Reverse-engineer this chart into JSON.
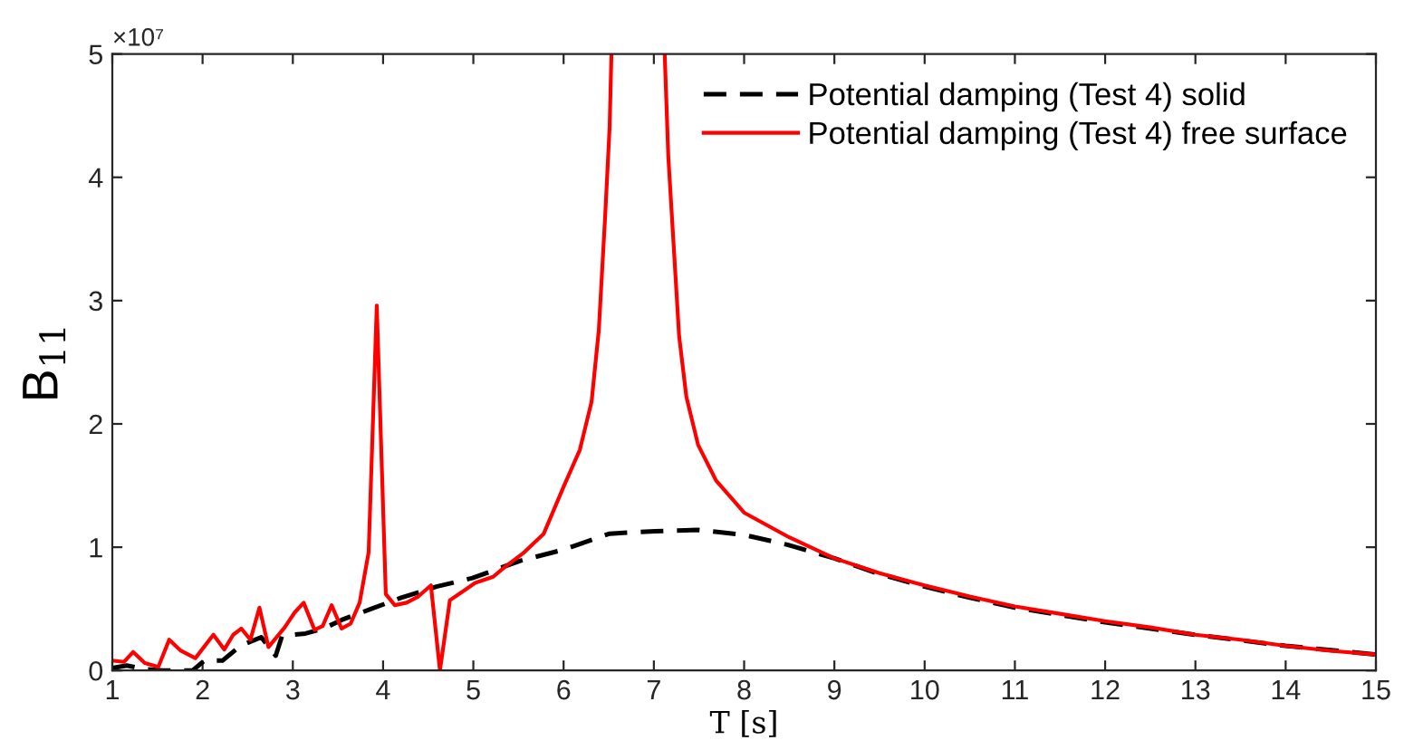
{
  "chart_data": {
    "type": "line",
    "xlabel": "T [s]",
    "ylabel": "B$_{11}$",
    "xlim": [
      1,
      15
    ],
    "xticks": [
      1,
      2,
      3,
      4,
      5,
      6,
      7,
      8,
      9,
      10,
      11,
      12,
      13,
      14,
      15
    ],
    "ylim": [
      0,
      5
    ],
    "yticks": [
      0,
      1,
      2,
      3,
      4,
      5
    ],
    "annotations": [
      "×10⁷"
    ],
    "legend": "top right",
    "grid": false,
    "marker": "none",
    "series": [
      {
        "name": "Potential damping (Test 4) solid",
        "color": "#000000",
        "line_style": "dashed",
        "x": [
          1.0,
          1.16,
          1.36,
          1.56,
          1.89,
          2.02,
          2.22,
          2.42,
          2.65,
          2.81,
          2.88,
          3.14,
          3.34,
          3.54,
          3.87,
          4.2,
          4.59,
          4.99,
          5.52,
          6.0,
          6.51,
          7.01,
          7.49,
          8.0,
          8.48,
          9.0,
          9.47,
          10.0,
          10.5,
          11.0,
          12.0,
          13.0,
          14.0,
          15.0
        ],
        "values": [
          0.02,
          0.04,
          0.01,
          0.0,
          0.0,
          0.08,
          0.08,
          0.2,
          0.27,
          0.12,
          0.28,
          0.3,
          0.34,
          0.41,
          0.5,
          0.59,
          0.68,
          0.75,
          0.89,
          0.98,
          1.11,
          1.13,
          1.14,
          1.1,
          1.02,
          0.91,
          0.79,
          0.68,
          0.59,
          0.51,
          0.39,
          0.29,
          0.2,
          0.13
        ]
      },
      {
        "name": "Potential damping (Test 4) free surface",
        "color": "#ff0000",
        "line_style": "solid",
        "x": [
          1.0,
          1.13,
          1.23,
          1.36,
          1.51,
          1.63,
          1.76,
          1.92,
          2.12,
          2.24,
          2.34,
          2.43,
          2.53,
          2.63,
          2.73,
          2.91,
          3.02,
          3.12,
          3.24,
          3.33,
          3.43,
          3.54,
          3.64,
          3.74,
          3.84,
          3.93,
          4.03,
          4.13,
          4.26,
          4.39,
          4.53,
          4.63,
          4.74,
          4.86,
          5.02,
          5.22,
          5.35,
          5.55,
          5.78,
          6.0,
          6.18,
          6.31,
          6.39,
          6.46,
          6.51,
          6.53,
          6.8,
          7.12,
          7.16,
          7.22,
          7.28,
          7.36,
          7.49,
          7.69,
          8.0,
          8.5,
          9.0,
          9.5,
          10.0,
          10.5,
          11.0,
          11.5,
          12.0,
          12.5,
          13.0,
          13.5,
          14.0,
          14.5,
          15.0
        ],
        "values": [
          0.08,
          0.07,
          0.15,
          0.06,
          0.03,
          0.25,
          0.16,
          0.1,
          0.29,
          0.17,
          0.29,
          0.34,
          0.25,
          0.51,
          0.19,
          0.35,
          0.47,
          0.55,
          0.33,
          0.36,
          0.53,
          0.34,
          0.38,
          0.55,
          0.96,
          2.96,
          0.62,
          0.53,
          0.55,
          0.6,
          0.69,
          0.0,
          0.57,
          0.63,
          0.71,
          0.76,
          0.84,
          0.95,
          1.11,
          1.49,
          1.79,
          2.18,
          2.76,
          3.68,
          4.41,
          5.0,
          null,
          5.0,
          4.17,
          3.44,
          2.71,
          2.22,
          1.83,
          1.54,
          1.28,
          1.08,
          0.91,
          0.79,
          0.69,
          0.6,
          0.52,
          0.46,
          0.4,
          0.35,
          0.29,
          0.25,
          0.2,
          0.16,
          0.13
        ]
      }
    ]
  }
}
